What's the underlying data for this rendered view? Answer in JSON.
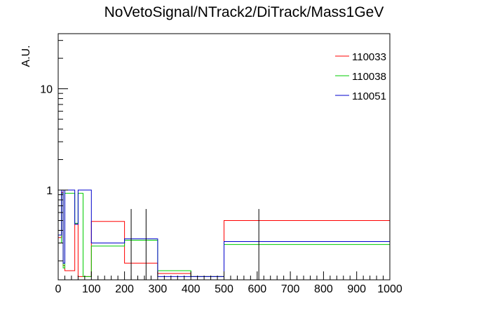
{
  "chart_data": {
    "type": "step-histogram",
    "title": "NoVetoSignal/NTrack2/DiTrack/Mass1GeV",
    "xlabel": "",
    "ylabel": "A.U.",
    "xlim": [
      0,
      1000
    ],
    "ylim": [
      0.13,
      35
    ],
    "ylog": true,
    "legend_position": "top-right",
    "x_ticks": [
      "0",
      "100",
      "200",
      "300",
      "400",
      "500",
      "600",
      "700",
      "800",
      "900",
      "1000"
    ],
    "y_ticks": [
      "1",
      "10"
    ],
    "series": [
      {
        "name": "110033",
        "color": "#ff0000",
        "bins": [
          {
            "x0": 0,
            "x1": 10,
            "y": 0.34
          },
          {
            "x0": 10,
            "x1": 15,
            "y": 0.95
          },
          {
            "x0": 15,
            "x1": 20,
            "y": 0.18
          },
          {
            "x0": 20,
            "x1": 50,
            "y": 0.16
          },
          {
            "x0": 50,
            "x1": 60,
            "y": 0.46
          },
          {
            "x0": 60,
            "x1": 75,
            "y": 0.14
          },
          {
            "x0": 75,
            "x1": 100,
            "y": 0.14
          },
          {
            "x0": 100,
            "x1": 200,
            "y": 0.49
          },
          {
            "x0": 200,
            "x1": 300,
            "y": 0.19
          },
          {
            "x0": 300,
            "x1": 400,
            "y": 0.15
          },
          {
            "x0": 400,
            "x1": 500,
            "y": 0.14
          },
          {
            "x0": 500,
            "x1": 1000,
            "y": 0.5
          }
        ]
      },
      {
        "name": "110038",
        "color": "#00cc00",
        "bins": [
          {
            "x0": 0,
            "x1": 10,
            "y": 0.3
          },
          {
            "x0": 10,
            "x1": 15,
            "y": 0.93
          },
          {
            "x0": 15,
            "x1": 20,
            "y": 0.17
          },
          {
            "x0": 20,
            "x1": 50,
            "y": 0.93
          },
          {
            "x0": 50,
            "x1": 60,
            "y": 0.47
          },
          {
            "x0": 60,
            "x1": 75,
            "y": 0.93
          },
          {
            "x0": 75,
            "x1": 100,
            "y": 0.14
          },
          {
            "x0": 100,
            "x1": 200,
            "y": 0.28
          },
          {
            "x0": 200,
            "x1": 300,
            "y": 0.32
          },
          {
            "x0": 300,
            "x1": 400,
            "y": 0.16
          },
          {
            "x0": 400,
            "x1": 500,
            "y": 0.14
          },
          {
            "x0": 500,
            "x1": 1000,
            "y": 0.29
          }
        ]
      },
      {
        "name": "110051",
        "color": "#0000cc",
        "bins": [
          {
            "x0": 0,
            "x1": 10,
            "y": 0.36
          },
          {
            "x0": 10,
            "x1": 15,
            "y": 1.0
          },
          {
            "x0": 15,
            "x1": 20,
            "y": 0.19
          },
          {
            "x0": 20,
            "x1": 50,
            "y": 1.0
          },
          {
            "x0": 50,
            "x1": 60,
            "y": 0.46
          },
          {
            "x0": 60,
            "x1": 75,
            "y": 1.0
          },
          {
            "x0": 75,
            "x1": 100,
            "y": 1.0
          },
          {
            "x0": 100,
            "x1": 200,
            "y": 0.3
          },
          {
            "x0": 200,
            "x1": 300,
            "y": 0.33
          },
          {
            "x0": 300,
            "x1": 400,
            "y": 0.14
          },
          {
            "x0": 400,
            "x1": 500,
            "y": 0.14
          },
          {
            "x0": 500,
            "x1": 1000,
            "y": 0.31
          }
        ]
      }
    ],
    "error_bars": [
      {
        "x": 220,
        "ylo": 0.13,
        "yhi": 0.65
      },
      {
        "x": 265,
        "ylo": 0.13,
        "yhi": 0.65
      },
      {
        "x": 605,
        "ylo": 0.13,
        "yhi": 0.65
      }
    ]
  }
}
